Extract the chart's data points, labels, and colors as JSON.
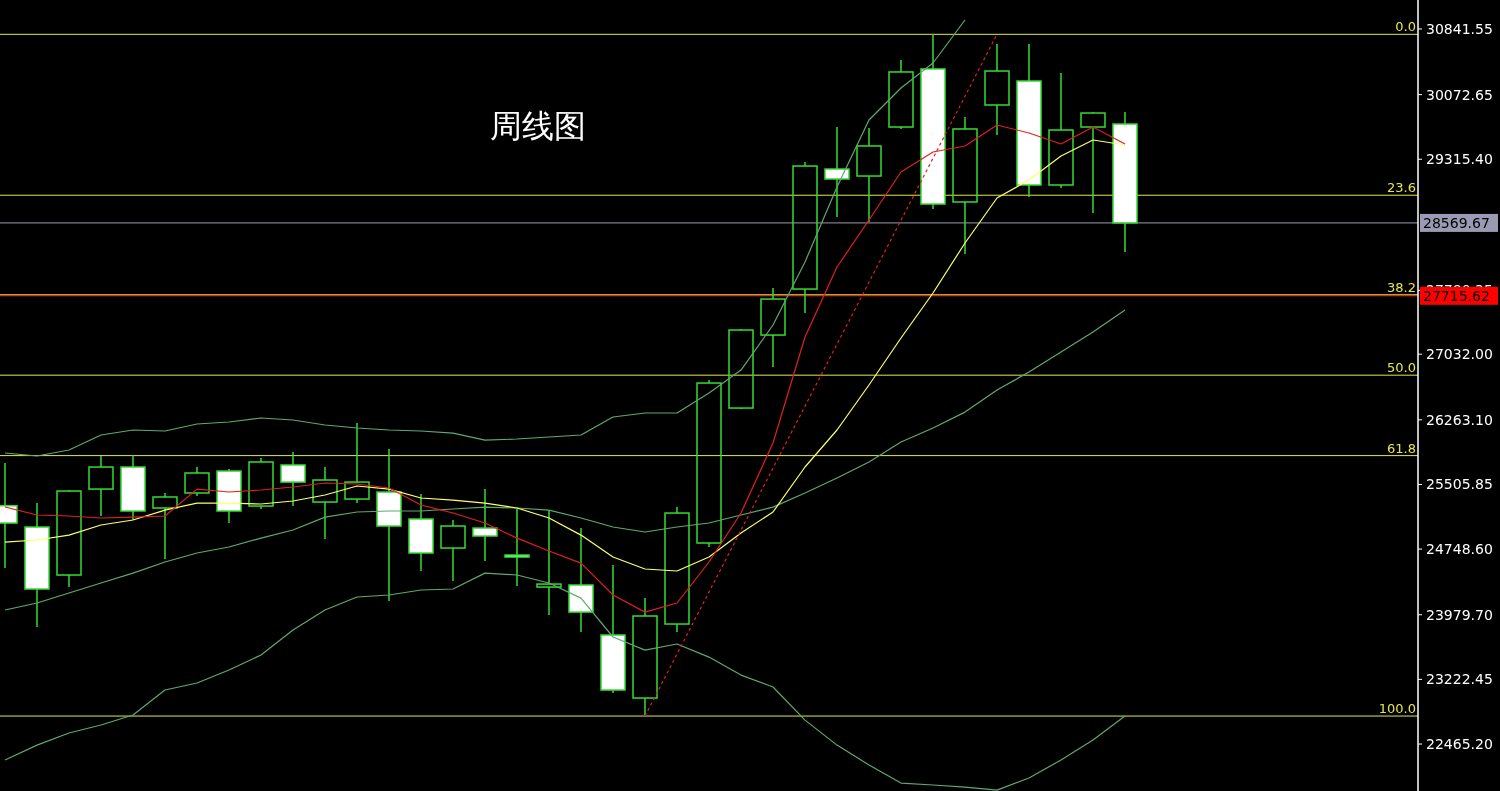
{
  "chart_data": {
    "type": "candlestick",
    "title": "周线图",
    "categories": [
      null,
      null,
      null,
      null,
      null,
      null,
      null,
      null,
      null,
      null,
      null,
      null,
      null,
      null,
      null,
      null,
      null,
      null,
      null,
      null,
      null,
      null,
      null,
      null,
      null,
      null,
      null,
      null,
      null,
      null,
      null,
      null,
      null,
      null,
      null,
      null
    ],
    "ohlc": [
      [
        25257,
        25757,
        24527,
        25054
      ],
      [
        25007,
        25288,
        23836,
        24281
      ],
      [
        24445,
        25441,
        24304,
        25429
      ],
      [
        25452,
        25839,
        25136,
        25710
      ],
      [
        25710,
        25851,
        25089,
        25195
      ],
      [
        25230,
        25406,
        24632,
        25359
      ],
      [
        25406,
        25710,
        25370,
        25640
      ],
      [
        25663,
        25687,
        25054,
        25195
      ],
      [
        25253,
        25816,
        25218,
        25769
      ],
      [
        25734,
        25886,
        25253,
        25534
      ],
      [
        25300,
        25710,
        24867,
        25558
      ],
      [
        25335,
        26226,
        25288,
        25534
      ],
      [
        25417,
        25921,
        24140,
        25019
      ],
      [
        25101,
        25394,
        24492,
        24703
      ],
      [
        24761,
        25089,
        24375,
        25019
      ],
      [
        24995,
        25452,
        24609,
        24902
      ],
      [
        24679,
        25218,
        24316,
        24656
      ],
      [
        24304,
        25206,
        23976,
        24339
      ],
      [
        24328,
        24995,
        23777,
        24011
      ],
      [
        23742,
        24562,
        23063,
        23098
      ],
      [
        23004,
        24175,
        22805,
        23965
      ],
      [
        23871,
        25241,
        23777,
        25171
      ],
      [
        24820,
        26729,
        24773,
        26694
      ],
      [
        26401,
        27327,
        26390,
        27315
      ],
      [
        27256,
        27807,
        26882,
        27678
      ],
      [
        27795,
        29283,
        27514,
        29236
      ],
      [
        29201,
        29693,
        28639,
        29084
      ],
      [
        29119,
        29681,
        28580,
        29471
      ],
      [
        29693,
        30478,
        29670,
        30338
      ],
      [
        30373,
        30779,
        28733,
        28791
      ],
      [
        28815,
        29810,
        28205,
        29670
      ],
      [
        29951,
        30666,
        29599,
        30349
      ],
      [
        30232,
        30666,
        28873,
        29014
      ],
      [
        29014,
        30326,
        28979,
        29658
      ],
      [
        29693,
        29869,
        28686,
        29857
      ],
      [
        29728,
        29869,
        28229,
        28569.67
      ]
    ],
    "color": "#33dd33",
    "colors": [
      "#ffffff",
      "#ffffff",
      "#33dd33",
      "#33dd33",
      "#ffffff",
      "#33dd33",
      "#33dd33",
      "#ffffff",
      "#33dd33",
      "#ffffff",
      "#33dd33",
      "#33dd33",
      "#ffffff",
      "#ffffff",
      "#33dd33",
      "#ffffff",
      "#ffffff",
      "#33dd33",
      "#ffffff",
      "#ffffff",
      "#33dd33",
      "#33dd33",
      "#33dd33",
      "#33dd33",
      "#33dd33",
      "#33dd33",
      "#ffffff",
      "#33dd33",
      "#33dd33",
      "#ffffff",
      "#33dd33",
      "#33dd33",
      "#ffffff",
      "#33dd33",
      "#33dd33",
      "#ffffff"
    ],
    "series": [
      {
        "type": "line",
        "color": "#5fa870",
        "values": [
          25874,
          25839,
          25909,
          26085,
          26144,
          26132,
          26214,
          26237,
          26284,
          26261,
          26202,
          26167,
          26144,
          26132,
          26108,
          26026,
          26038,
          26062,
          26085,
          26296,
          26343,
          26343,
          26577,
          26846,
          27374,
          28112,
          28990,
          29775,
          30150,
          30443,
          30947,
          null,
          null,
          null,
          null,
          null
        ]
      },
      {
        "type": "line",
        "color": "#5fa870",
        "values": [
          24035,
          24117,
          24234,
          24351,
          24468,
          24597,
          24703,
          24773,
          24878,
          24972,
          25124,
          25183,
          25195,
          25195,
          25218,
          25241,
          25230,
          25206,
          25113,
          25007,
          24949,
          25007,
          25054,
          25148,
          25241,
          25406,
          25581,
          25769,
          26003,
          26167,
          26354,
          26612,
          26823,
          27057,
          27292,
          27549
        ]
      },
      {
        "type": "line",
        "color": "#5fa870",
        "values": [
          22278,
          22453,
          22594,
          22688,
          22805,
          23098,
          23180,
          23332,
          23508,
          23801,
          24035,
          24187,
          24211,
          24269,
          24281,
          24468,
          24445,
          24351,
          24175,
          23719,
          23566,
          23637,
          23484,
          23273,
          23133,
          22746,
          22453,
          22219,
          22008,
          21985,
          21961,
          21926,
          22067,
          22278,
          22512,
          22793
        ]
      },
      {
        "type": "line",
        "color": "#ffff66",
        "values": [
          24831,
          24855,
          24913,
          25031,
          25089,
          25206,
          25288,
          25288,
          25277,
          25312,
          25382,
          25488,
          25452,
          25347,
          25323,
          25288,
          25230,
          25113,
          24913,
          24656,
          24515,
          24492,
          24656,
          24937,
          25183,
          25710,
          26144,
          26671,
          27221,
          27749,
          28334,
          28861,
          29072,
          29353,
          29541,
          29482
        ]
      },
      {
        "type": "line",
        "color": "#e02020",
        "values": [
          25242,
          25148,
          25136,
          25113,
          25124,
          25136,
          25452,
          25417,
          25441,
          25476,
          25523,
          25511,
          25464,
          25265,
          25171,
          25054,
          24878,
          24726,
          24585,
          24211,
          24011,
          24117,
          24597,
          25171,
          25991,
          27233,
          28053,
          28604,
          29166,
          29400,
          29471,
          29717,
          29623,
          29494,
          29693,
          29494
        ]
      },
      {
        "type": "line",
        "color": "#e02020",
        "line_style": "dashed",
        "values": [
          null,
          null,
          null,
          null,
          null,
          null,
          null,
          null,
          null,
          null,
          null,
          null,
          null,
          null,
          null,
          null,
          null,
          null,
          null,
          null,
          22793,
          null,
          null,
          null,
          null,
          null,
          null,
          null,
          null,
          null,
          null,
          30779,
          null,
          null,
          null,
          null
        ]
      }
    ],
    "ylim": [
      21915,
      31181
    ],
    "yticks": [
      30841.55,
      30072.65,
      {
        "value": 29315.4,
        "label": "29315.40"
      },
      27780.35,
      {
        "value": 27032.0,
        "label": "27032.00"
      },
      {
        "value": 26263.1,
        "label": "26263.10"
      },
      25505.85,
      {
        "value": 24748.6,
        "label": "24748.60"
      },
      {
        "value": 23979.7,
        "label": "23979.70"
      },
      23222.45,
      {
        "value": 22465.2,
        "label": "22465.20"
      }
    ],
    "ref_lines": [
      {
        "axis": "y",
        "value": 30779,
        "color": "#e6e64c"
      },
      {
        "axis": "y",
        "value": 28894,
        "color": "#e6e64c"
      },
      {
        "axis": "y",
        "value": 26786,
        "color": "#e6e64c"
      },
      {
        "axis": "y",
        "value": 25844,
        "color": "#e6e64c"
      },
      {
        "axis": "y",
        "value": 22793,
        "color": "#e6e64c"
      },
      {
        "axis": "y",
        "value": 28569.67,
        "label": "28569.67",
        "color": "#9a9ab4"
      },
      {
        "axis": "y",
        "value": 27715.62,
        "label": "27715.62",
        "color": "#ff0000"
      },
      {
        "axis": "y",
        "value": 27728,
        "color": "#e6e64c"
      }
    ],
    "annotations": [
      {
        "text": "0.0",
        "y": 30779
      },
      {
        "text": "23.6",
        "y": 28894
      },
      {
        "text": "38.2",
        "y": 27728
      },
      {
        "text": "50.0",
        "y": 26786
      },
      {
        "text": "61.8",
        "y": 25844
      },
      {
        "text": "100.0",
        "y": 22793
      }
    ],
    "grid": false
  }
}
